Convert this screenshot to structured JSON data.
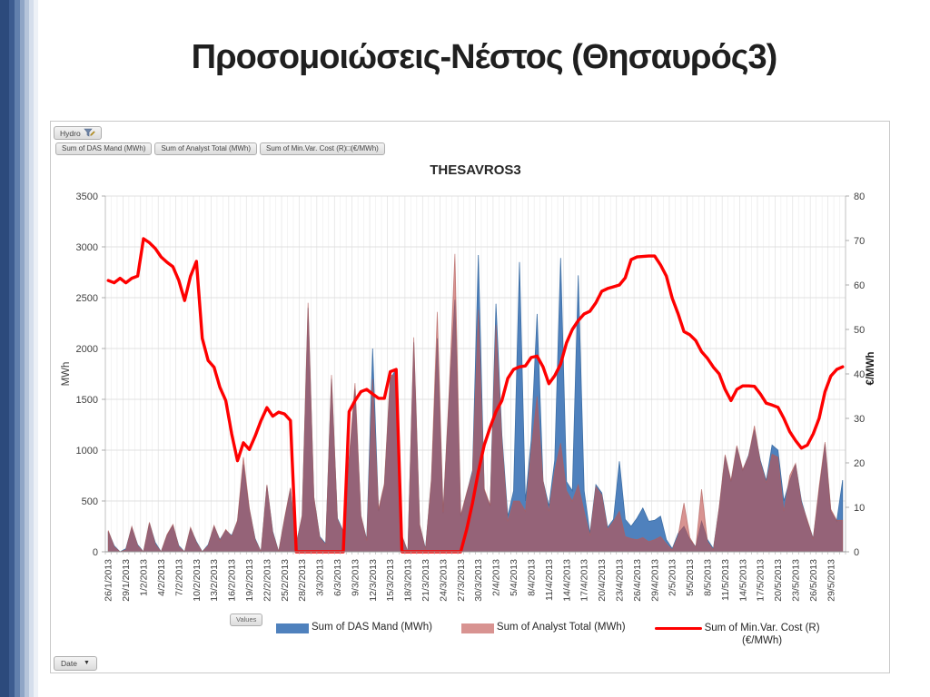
{
  "slide": {
    "title": "Προσομοιώσεις-Νέστος (Θησαυρός3)"
  },
  "pivot": {
    "filter_button": "Hydro",
    "field_buttons": [
      "Sum of DAS Mand  (MWh)",
      "Sum of Analyst Total (MWh)",
      "Sum of Min.Var. Cost (R)□(€/MWh)"
    ],
    "values_button": "Values",
    "axis_button": "Date",
    "dropdown_arrow": "▼"
  },
  "colors": {
    "das_area": "#4F81BD",
    "analyst_area": "#C0504D",
    "cost_line": "#FE0000",
    "gridline": "#d9d9d9",
    "strip_dark_blue": "#2c4a7c"
  },
  "chart_data": {
    "type": "area",
    "title": "THESAVROS3",
    "left_axis": {
      "label": "MWh",
      "min": 0,
      "max": 3500,
      "step": 500
    },
    "right_axis": {
      "label": "€/MWh",
      "min": 0,
      "max": 80,
      "step": 10
    },
    "days_per_label": 3,
    "x_tick_labels": [
      "26/1/2013",
      "29/1/2013",
      "1/2/2013",
      "4/2/2013",
      "7/2/2013",
      "10/2/2013",
      "13/2/2013",
      "16/2/2013",
      "19/2/2013",
      "22/2/2013",
      "25/2/2013",
      "28/2/2013",
      "3/3/2013",
      "6/3/2013",
      "9/3/2013",
      "12/3/2013",
      "15/3/2013",
      "18/3/2013",
      "21/3/2013",
      "24/3/2013",
      "27/3/2013",
      "30/3/2013",
      "2/4/2013",
      "5/4/2013",
      "8/4/2013",
      "11/4/2013",
      "14/4/2013",
      "17/4/2013",
      "20/4/2013",
      "23/4/2013",
      "26/4/2013",
      "29/4/2013",
      "2/5/2013",
      "5/5/2013",
      "8/5/2013",
      "11/5/2013",
      "14/5/2013",
      "17/5/2013",
      "20/5/2013",
      "23/5/2013",
      "26/5/2013",
      "29/5/2013"
    ],
    "legend": {
      "das": "Sum of DAS Mand  (MWh)",
      "analyst": "Sum of Analyst Total (MWh)",
      "cost_line1": "Sum of Min.Var. Cost (R)",
      "cost_line2": "(€/MWh)"
    },
    "series": [
      {
        "name": "Sum of DAS Mand  (MWh)",
        "type": "area",
        "axis": "left",
        "color": "#4F81BD",
        "opacity": 1,
        "values": [
          200,
          60,
          0,
          30,
          240,
          70,
          0,
          280,
          90,
          0,
          160,
          260,
          60,
          0,
          230,
          100,
          0,
          70,
          250,
          120,
          210,
          160,
          300,
          860,
          420,
          130,
          0,
          650,
          200,
          0,
          320,
          620,
          80,
          350,
          2400,
          530,
          150,
          80,
          1700,
          330,
          200,
          900,
          1600,
          350,
          120,
          2000,
          400,
          650,
          1700,
          1800,
          150,
          0,
          2060,
          260,
          30,
          700,
          2100,
          380,
          1500,
          2480,
          350,
          570,
          800,
          2920,
          600,
          450,
          2440,
          1150,
          350,
          600,
          2850,
          500,
          1100,
          2340,
          700,
          450,
          900,
          2890,
          690,
          600,
          2720,
          600,
          180,
          660,
          580,
          240,
          320,
          890,
          320,
          250,
          330,
          430,
          300,
          310,
          350,
          120,
          30,
          180,
          250,
          120,
          50,
          300,
          120,
          30,
          430,
          940,
          690,
          1030,
          800,
          950,
          1200,
          900,
          700,
          1050,
          1000,
          500,
          700,
          860,
          500,
          300,
          130,
          600,
          1060,
          400,
          300,
          705
        ]
      },
      {
        "name": "Sum of Analyst Total (MWh)",
        "type": "area",
        "axis": "left",
        "color": "#C0504D",
        "opacity": 0.62,
        "values": [
          210,
          50,
          0,
          20,
          250,
          60,
          0,
          290,
          75,
          0,
          170,
          270,
          50,
          0,
          240,
          90,
          0,
          60,
          260,
          110,
          220,
          150,
          310,
          930,
          430,
          120,
          0,
          660,
          190,
          0,
          330,
          630,
          70,
          360,
          2450,
          540,
          140,
          70,
          1740,
          320,
          190,
          920,
          1660,
          360,
          110,
          1700,
          420,
          670,
          1740,
          1730,
          160,
          0,
          2110,
          270,
          20,
          720,
          2360,
          390,
          1550,
          2930,
          360,
          580,
          780,
          2380,
          620,
          460,
          2230,
          1100,
          300,
          500,
          500,
          400,
          1000,
          1530,
          700,
          400,
          800,
          1070,
          600,
          500,
          660,
          400,
          160,
          640,
          560,
          220,
          300,
          400,
          150,
          130,
          120,
          140,
          100,
          120,
          150,
          80,
          20,
          160,
          480,
          140,
          40,
          615,
          100,
          20,
          440,
          955,
          700,
          1045,
          810,
          940,
          1240,
          880,
          680,
          960,
          930,
          400,
          750,
          870,
          480,
          310,
          125,
          640,
          1080,
          420,
          310,
          310
        ]
      },
      {
        "name": "Sum of Min.Var. Cost (R) (€/MWh)",
        "type": "line",
        "axis": "right",
        "color": "#FE0000",
        "opacity": 1,
        "values": [
          61,
          60.5,
          61.5,
          60.5,
          61.5,
          62,
          70.4,
          69.5,
          68.2,
          66.3,
          65.1,
          64.1,
          61,
          56.5,
          62,
          65.3,
          48,
          43,
          41.5,
          37,
          34,
          26.5,
          20.5,
          24.5,
          23,
          26,
          29.5,
          32.4,
          30.5,
          31.4,
          31,
          29.5,
          0,
          0,
          0,
          0,
          0,
          0,
          0,
          0,
          0,
          31.5,
          34,
          36,
          36.5,
          35.5,
          34.5,
          34.5,
          40.5,
          41,
          0,
          0,
          0,
          0,
          0,
          0,
          0,
          0,
          0,
          0,
          0,
          5,
          11,
          18,
          24,
          28,
          31.5,
          34,
          39,
          41,
          41.6,
          41.8,
          43.7,
          44,
          41.6,
          37.8,
          39.6,
          42.2,
          47,
          50,
          52,
          53.5,
          54.1,
          56,
          58.6,
          59.2,
          59.6,
          60,
          61.6,
          65.7,
          66.3,
          66.4,
          66.5,
          66.5,
          64.5,
          62,
          57,
          53.5,
          49.5,
          48.8,
          47.5,
          45,
          43.5,
          41.5,
          40,
          36.5,
          34,
          36.5,
          37.3,
          37.3,
          37.2,
          35.5,
          33.4,
          33,
          32.5,
          30,
          27,
          25,
          23.3,
          24,
          26.5,
          30,
          36,
          39.5,
          41,
          41.6
        ]
      }
    ]
  }
}
